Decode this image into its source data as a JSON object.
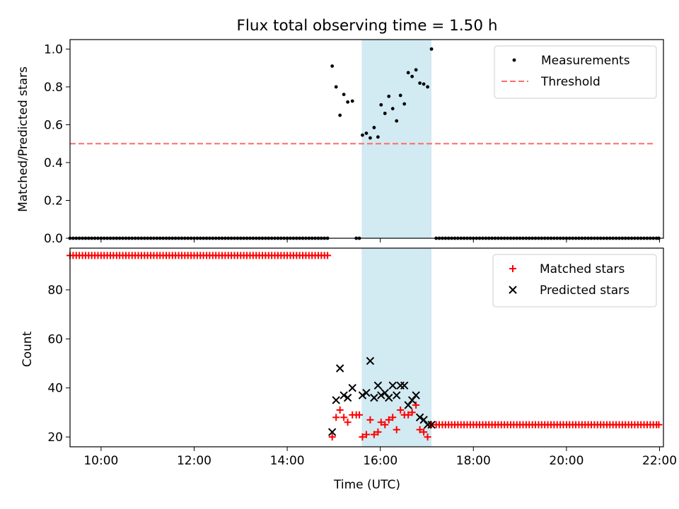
{
  "chart_data": {
    "type": "scatter",
    "title": "Flux total observing time = 1.50 h",
    "xlabel": "Time (UTC)",
    "x_range": [
      "09:20",
      "22:05"
    ],
    "x_ticks": [
      "10:00",
      "12:00",
      "14:00",
      "16:00",
      "18:00",
      "20:00",
      "22:00"
    ],
    "shaded_interval": [
      "15:36",
      "17:06"
    ],
    "shade_color": "#add8e6",
    "panels": [
      {
        "ylabel": "Matched/Predicted stars",
        "ylim": [
          0,
          1.05
        ],
        "y_ticks": [
          "0.0",
          "0.2",
          "0.4",
          "0.6",
          "0.8",
          "1.0"
        ],
        "legend": {
          "placement": "top-right"
        },
        "threshold": {
          "name": "Threshold",
          "value": 0.5,
          "x": [
            "09:20",
            "21:55"
          ],
          "color": "#ff6b6b"
        },
        "series": [
          {
            "name": "Measurements",
            "marker": "dot",
            "color": "#000000",
            "zero_runs": [
              {
                "start": "09:20",
                "end": "14:54",
                "step_min": 4
              },
              {
                "start": "17:12",
                "end": "21:53",
                "step_min": 4
              }
            ],
            "points": [
              [
                "14:58",
                0.91
              ],
              [
                "15:03",
                0.8
              ],
              [
                "15:08",
                0.65
              ],
              [
                "15:13",
                0.76
              ],
              [
                "15:18",
                0.72
              ],
              [
                "15:24",
                0.725
              ],
              [
                "15:29",
                0.0
              ],
              [
                "15:33",
                0.0
              ],
              [
                "15:37",
                0.545
              ],
              [
                "15:42",
                0.555
              ],
              [
                "15:47",
                0.53
              ],
              [
                "15:52",
                0.585
              ],
              [
                "15:57",
                0.535
              ],
              [
                "16:01",
                0.705
              ],
              [
                "16:06",
                0.66
              ],
              [
                "16:11",
                0.75
              ],
              [
                "16:16",
                0.685
              ],
              [
                "16:21",
                0.62
              ],
              [
                "16:26",
                0.755
              ],
              [
                "16:31",
                0.71
              ],
              [
                "16:36",
                0.875
              ],
              [
                "16:41",
                0.855
              ],
              [
                "16:46",
                0.89
              ],
              [
                "16:51",
                0.82
              ],
              [
                "16:56",
                0.815
              ],
              [
                "17:01",
                0.8
              ],
              [
                "17:06",
                1.0
              ],
              [
                "21:56",
                0.0
              ],
              [
                "21:59",
                0.0
              ]
            ]
          }
        ]
      },
      {
        "ylabel": "Count",
        "ylim": [
          16,
          97
        ],
        "y_ticks": [
          "20",
          "40",
          "60",
          "80"
        ],
        "legend": {
          "placement": "top-right"
        },
        "series": [
          {
            "name": "Matched stars",
            "marker": "plus",
            "color": "#ff0000",
            "constant_runs": [
              {
                "start": "09:20",
                "end": "14:54",
                "step_min": 4,
                "value": 94
              },
              {
                "start": "17:12",
                "end": "21:56",
                "step_min": 4,
                "value": 25
              }
            ],
            "points": [
              [
                "14:58",
                20
              ],
              [
                "15:03",
                28
              ],
              [
                "15:08",
                31
              ],
              [
                "15:13",
                28
              ],
              [
                "15:18",
                26
              ],
              [
                "15:24",
                29
              ],
              [
                "15:29",
                29
              ],
              [
                "15:33",
                29
              ],
              [
                "15:37",
                20
              ],
              [
                "15:42",
                21
              ],
              [
                "15:47",
                27
              ],
              [
                "15:52",
                21
              ],
              [
                "15:57",
                22
              ],
              [
                "16:01",
                26
              ],
              [
                "16:06",
                25
              ],
              [
                "16:11",
                27
              ],
              [
                "16:16",
                28
              ],
              [
                "16:21",
                23
              ],
              [
                "16:26",
                31
              ],
              [
                "16:31",
                29
              ],
              [
                "16:36",
                29
              ],
              [
                "16:41",
                30
              ],
              [
                "16:46",
                33
              ],
              [
                "16:51",
                23
              ],
              [
                "16:56",
                22
              ],
              [
                "17:01",
                20
              ],
              [
                "17:06",
                25
              ],
              [
                "21:59",
                25
              ]
            ]
          },
          {
            "name": "Predicted stars",
            "marker": "x",
            "color": "#000000",
            "points": [
              [
                "14:58",
                22
              ],
              [
                "15:03",
                35
              ],
              [
                "15:08",
                48
              ],
              [
                "15:13",
                37
              ],
              [
                "15:18",
                36
              ],
              [
                "15:24",
                40
              ],
              [
                "15:37",
                37
              ],
              [
                "15:42",
                38
              ],
              [
                "15:47",
                51
              ],
              [
                "15:52",
                36
              ],
              [
                "15:57",
                41
              ],
              [
                "16:01",
                37
              ],
              [
                "16:06",
                38
              ],
              [
                "16:11",
                36
              ],
              [
                "16:16",
                41
              ],
              [
                "16:21",
                37
              ],
              [
                "16:26",
                41
              ],
              [
                "16:31",
                41
              ],
              [
                "16:36",
                33
              ],
              [
                "16:41",
                35
              ],
              [
                "16:46",
                37
              ],
              [
                "16:51",
                28
              ],
              [
                "16:56",
                27
              ],
              [
                "17:01",
                25
              ],
              [
                "17:06",
                25
              ]
            ]
          }
        ]
      }
    ]
  }
}
